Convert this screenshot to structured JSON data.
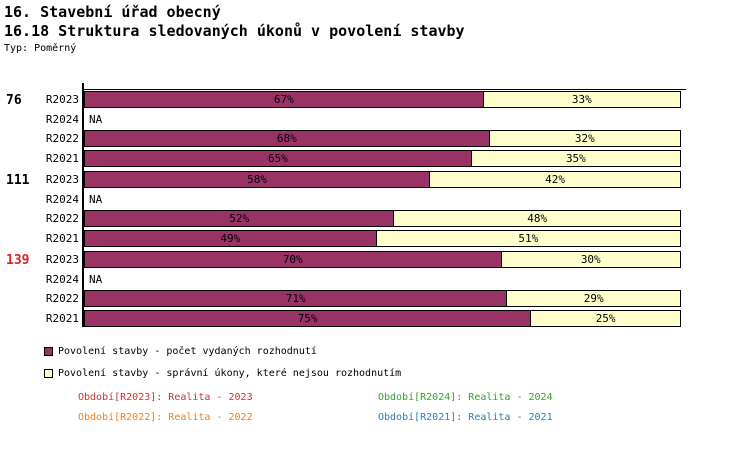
{
  "header": {
    "title_line1": "16. Stavební úřad obecný",
    "title_line2": "16.18 Struktura sledovaných úkonů v povolení stavby",
    "type_label": "Typ: Poměrný"
  },
  "chart_data": {
    "type": "bar",
    "orientation": "horizontal",
    "stacked": true,
    "value_unit": "%",
    "xlim": [
      0,
      100
    ],
    "na_label": "NA",
    "grid": false,
    "legend_position": "bottom-left",
    "series": [
      {
        "name": "Povolení stavby - počet vydaných rozhodnutí",
        "color": "#993366"
      },
      {
        "name": "Povolení stavby - správní úkony, které nejsou rozhodnutím",
        "color": "#ffffcc"
      }
    ],
    "groups": [
      {
        "label": "76",
        "label_color": "#000000",
        "bars": [
          {
            "period": "R2023",
            "values": [
              67,
              33
            ]
          },
          {
            "period": "R2024",
            "values": null
          },
          {
            "period": "R2022",
            "values": [
              68,
              32
            ]
          },
          {
            "period": "R2021",
            "values": [
              65,
              35
            ]
          }
        ]
      },
      {
        "label": "111",
        "label_color": "#000000",
        "bars": [
          {
            "period": "R2023",
            "values": [
              58,
              42
            ]
          },
          {
            "period": "R2024",
            "values": null
          },
          {
            "period": "R2022",
            "values": [
              52,
              48
            ]
          },
          {
            "period": "R2021",
            "values": [
              49,
              51
            ]
          }
        ]
      },
      {
        "label": "139",
        "label_color": "#dd2222",
        "bars": [
          {
            "period": "R2023",
            "values": [
              70,
              30
            ]
          },
          {
            "period": "R2024",
            "values": null
          },
          {
            "period": "R2022",
            "values": [
              71,
              29
            ]
          },
          {
            "period": "R2021",
            "values": [
              75,
              25
            ]
          }
        ]
      }
    ]
  },
  "legend": {
    "items": [
      {
        "label": "Povolení stavby - počet vydaných rozhodnutí",
        "color": "#993366"
      },
      {
        "label": "Povolení stavby - správní úkony, které nejsou rozhodnutím",
        "color": "#ffffcc"
      }
    ]
  },
  "footer": {
    "items": [
      {
        "text": "Období[R2023]: Realita - 2023",
        "color": "#cc3333"
      },
      {
        "text": "Období[R2024]: Realita - 2024",
        "color": "#33a033"
      },
      {
        "text": "Období[R2022]: Realita - 2022",
        "color": "#f08020"
      },
      {
        "text": "Období[R2021]: Realita - 2021",
        "color": "#2e7eb3"
      }
    ]
  }
}
